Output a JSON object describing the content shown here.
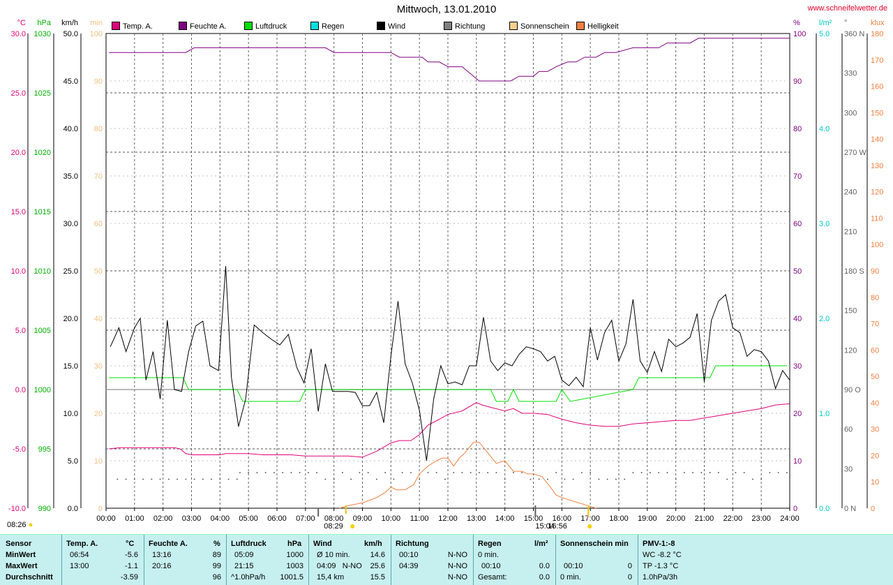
{
  "page": {
    "title": "Mittwoch, 13.01.2010",
    "url": "www.schneifelwetter.de"
  },
  "axes_units": {
    "temp": "°C",
    "pressure": "hPa",
    "wind": "km/h",
    "sun": "min",
    "humidity": "%",
    "rain": "l/m²",
    "direction": "°",
    "light": "klux"
  },
  "legend": [
    {
      "label": "Temp. A.",
      "color": "#e0007a"
    },
    {
      "label": "Feuchte A.",
      "color": "#800080"
    },
    {
      "label": "Luftdruck",
      "color": "#00e000"
    },
    {
      "label": "Regen",
      "color": "#00e0e0"
    },
    {
      "label": "Wind",
      "color": "#000000"
    },
    {
      "label": "Richtung",
      "color": "#808080"
    },
    {
      "label": "Sonnenschein",
      "color": "#f8d090"
    },
    {
      "label": "Helligkeit",
      "color": "#f08040"
    }
  ],
  "time_markers": {
    "sunrise_left": "08:26",
    "marker_a": "08:29",
    "marker_b": "15:04",
    "marker_c": "16:56"
  },
  "chart_data": {
    "type": "line",
    "title": "Mittwoch, 13.01.2010",
    "xlim": [
      0,
      24
    ],
    "x_ticks": [
      "00:00",
      "01:00",
      "02:00",
      "03:00",
      "04:00",
      "05:00",
      "06:00",
      "07:00",
      "08:00",
      "09:00",
      "10:00",
      "11:00",
      "12:00",
      "13:00",
      "14:00",
      "15:00",
      "16:00",
      "17:00",
      "18:00",
      "19:00",
      "20:00",
      "21:00",
      "22:00",
      "23:00",
      "24:00"
    ],
    "axes": {
      "temp": {
        "unit": "°C",
        "range": [
          -10,
          30
        ],
        "ticks": [
          "-10.0",
          "-5.0",
          "0.0",
          "5.0",
          "10.0",
          "15.0",
          "20.0",
          "25.0",
          "30.0"
        ]
      },
      "pressure": {
        "unit": "hPa",
        "range": [
          990,
          1030
        ],
        "ticks": [
          "990",
          "995",
          "1000",
          "1005",
          "1010",
          "1015",
          "1020",
          "1025",
          "1030"
        ]
      },
      "wind": {
        "unit": "km/h",
        "range": [
          0,
          50
        ],
        "ticks": [
          "0.0",
          "5.0",
          "10.0",
          "15.0",
          "20.0",
          "25.0",
          "30.0",
          "35.0",
          "40.0",
          "45.0",
          "50.0"
        ]
      },
      "sun": {
        "unit": "min",
        "range": [
          0,
          100
        ],
        "ticks": [
          "0",
          "10",
          "20",
          "30",
          "40",
          "50",
          "60",
          "70",
          "80",
          "90",
          "100"
        ]
      },
      "humidity": {
        "unit": "%",
        "range": [
          0,
          100
        ],
        "ticks": [
          "0",
          "10",
          "20",
          "30",
          "40",
          "50",
          "60",
          "70",
          "80",
          "90",
          "100"
        ]
      },
      "rain": {
        "unit": "l/m²",
        "range": [
          0,
          5
        ],
        "ticks": [
          "0.0",
          "1.0",
          "2.0",
          "3.0",
          "4.0",
          "5.0"
        ]
      },
      "direction": {
        "unit": "°",
        "range": [
          0,
          360
        ],
        "ticks": [
          "0",
          "30",
          "60",
          "90",
          "120",
          "150",
          "180",
          "210",
          "240",
          "270",
          "300",
          "330",
          "360"
        ],
        "tick_suffix": {
          "0": "N",
          "90": "O",
          "180": "S",
          "270": "W",
          "360": "N"
        }
      },
      "light": {
        "unit": "klux",
        "range": [
          0,
          180
        ],
        "ticks": [
          "0",
          "10",
          "20",
          "30",
          "40",
          "50",
          "60",
          "70",
          "80",
          "90",
          "100",
          "110",
          "120",
          "130",
          "140",
          "150",
          "160",
          "170",
          "180"
        ]
      }
    },
    "series": [
      {
        "name": "Feuchte A.",
        "axis": "humidity",
        "color": "#800080",
        "x": [
          0.1,
          2.8,
          3.1,
          7.7,
          8.0,
          10.0,
          10.3,
          11.1,
          11.3,
          11.7,
          12.0,
          12.5,
          12.9,
          13.1,
          13.5,
          14.2,
          14.5,
          15.0,
          15.2,
          15.5,
          15.8,
          16.2,
          16.5,
          16.8,
          17.2,
          17.5,
          17.9,
          18.5,
          19.4,
          19.7,
          20.5,
          20.8,
          24.0
        ],
        "y": [
          96,
          96,
          97,
          97,
          96,
          96,
          95,
          95,
          94,
          94,
          93,
          93,
          91,
          90,
          90,
          90,
          91,
          91,
          92,
          92,
          93,
          94,
          94,
          95,
          95,
          96,
          96,
          97,
          97,
          98,
          98,
          99,
          99
        ]
      },
      {
        "name": "Luftdruck",
        "axis": "pressure",
        "color": "#00e000",
        "x": [
          0.1,
          2.7,
          2.9,
          4.6,
          4.8,
          6.8,
          7.0,
          13.5,
          13.7,
          14.1,
          14.3,
          14.5,
          15.5,
          15.8,
          16.0,
          16.3,
          18.5,
          18.7,
          21.2,
          21.4,
          23.9
        ],
        "y": [
          1001,
          1001,
          1000,
          1000,
          999,
          999,
          1000,
          1000,
          999,
          999,
          1000,
          999,
          999,
          999,
          1000,
          999,
          1000,
          1001,
          1001,
          1002,
          1002
        ]
      },
      {
        "name": "Temp. A.",
        "axis": "temp",
        "color": "#e0007a",
        "x": [
          0.1,
          0.5,
          1.0,
          1.5,
          2.0,
          2.4,
          2.6,
          2.8,
          3.0,
          3.5,
          4.0,
          4.2,
          5.0,
          5.5,
          6.0,
          6.5,
          7.0,
          7.5,
          8.0,
          8.5,
          9.0,
          9.5,
          10.0,
          10.3,
          10.7,
          11.0,
          11.3,
          11.7,
          12.0,
          12.5,
          13.0,
          13.2,
          13.5,
          14.0,
          14.3,
          14.6,
          15.0,
          15.5,
          16.0,
          16.5,
          17.0,
          17.5,
          18.0,
          18.5,
          19.0,
          19.5,
          20.0,
          20.5,
          21.0,
          21.5,
          22.0,
          22.5,
          23.0,
          23.5,
          24.0
        ],
        "y": [
          -5.0,
          -4.9,
          -4.9,
          -4.9,
          -4.9,
          -4.9,
          -5.0,
          -5.4,
          -5.5,
          -5.5,
          -5.5,
          -5.4,
          -5.4,
          -5.5,
          -5.5,
          -5.5,
          -5.6,
          -5.6,
          -5.6,
          -5.6,
          -5.7,
          -5.2,
          -4.5,
          -4.3,
          -4.3,
          -3.8,
          -3.0,
          -2.5,
          -2.1,
          -1.8,
          -1.1,
          -1.3,
          -1.5,
          -1.8,
          -1.6,
          -2.0,
          -2.0,
          -2.1,
          -2.5,
          -2.8,
          -3.0,
          -3.1,
          -3.1,
          -2.9,
          -2.8,
          -2.7,
          -2.6,
          -2.6,
          -2.4,
          -2.2,
          -2.0,
          -1.8,
          -1.6,
          -1.3,
          -1.2
        ]
      },
      {
        "name": "Wind",
        "axis": "wind",
        "color": "#000000",
        "x": [
          0.15,
          0.45,
          0.7,
          1.0,
          1.2,
          1.4,
          1.65,
          1.9,
          2.15,
          2.4,
          2.65,
          2.9,
          3.15,
          3.4,
          3.65,
          3.95,
          4.2,
          4.4,
          4.65,
          4.9,
          5.2,
          5.5,
          5.8,
          6.1,
          6.4,
          6.7,
          6.95,
          7.2,
          7.45,
          7.7,
          7.95,
          8.2,
          8.5,
          8.75,
          9.0,
          9.25,
          9.5,
          9.75,
          10.0,
          10.25,
          10.5,
          10.75,
          11.0,
          11.25,
          11.5,
          11.75,
          12.0,
          12.25,
          12.5,
          12.75,
          13.0,
          13.25,
          13.5,
          13.75,
          14.0,
          14.25,
          14.5,
          14.75,
          15.0,
          15.25,
          15.5,
          15.75,
          16.0,
          16.25,
          16.5,
          16.75,
          17.0,
          17.25,
          17.5,
          17.75,
          18.0,
          18.25,
          18.5,
          18.75,
          19.0,
          19.25,
          19.5,
          19.75,
          20.0,
          20.25,
          20.5,
          20.75,
          21.0,
          21.25,
          21.5,
          21.75,
          22.0,
          22.25,
          22.5,
          22.75,
          23.0,
          23.25,
          23.5,
          23.75,
          24.0
        ],
        "y": [
          17.0,
          19.0,
          16.5,
          19.0,
          20.0,
          13.5,
          16.5,
          11.5,
          19.8,
          12.5,
          12.3,
          16.5,
          19.2,
          19.7,
          15.0,
          14.5,
          25.5,
          13.8,
          8.6,
          11.5,
          19.3,
          18.5,
          17.8,
          17.2,
          18.3,
          14.8,
          13.2,
          16.8,
          10.2,
          15.2,
          12.3,
          12.3,
          12.3,
          12.2,
          10.8,
          10.8,
          12.2,
          9.0,
          16.0,
          21.8,
          15.2,
          13.2,
          10.3,
          5.0,
          11.5,
          15.0,
          13.1,
          13.3,
          13.0,
          15.0,
          15.0,
          20.1,
          15.5,
          14.5,
          15.3,
          15.0,
          16.2,
          17.0,
          16.8,
          16.5,
          15.5,
          16.0,
          13.5,
          12.9,
          13.8,
          12.8,
          19.0,
          15.6,
          18.5,
          19.8,
          15.5,
          17.3,
          22.0,
          15.5,
          14.3,
          16.5,
          14.4,
          17.8,
          17.0,
          17.4,
          18.0,
          20.5,
          13.3,
          19.8,
          21.8,
          22.5,
          19.0,
          18.5,
          16.0,
          16.7,
          16.5,
          15.5,
          12.6,
          14.5,
          13.5
        ]
      },
      {
        "name": "Helligkeit",
        "axis": "light",
        "color": "#f08040",
        "x": [
          8.2,
          8.5,
          9.0,
          9.5,
          9.8,
          10.0,
          10.2,
          10.5,
          10.8,
          11.0,
          11.3,
          11.6,
          11.8,
          12.0,
          12.2,
          12.4,
          12.6,
          12.9,
          13.1,
          13.4,
          13.7,
          14.0,
          14.3,
          14.6,
          14.8,
          15.0,
          15.3,
          15.6,
          15.8,
          16.0,
          16.3,
          16.6,
          16.9,
          17.2
        ],
        "y": [
          0,
          1,
          2,
          4,
          6,
          8,
          7,
          7,
          9,
          13,
          16,
          18,
          19,
          19,
          16,
          19,
          21,
          25,
          25,
          21,
          17,
          18,
          14,
          14,
          13,
          13,
          12,
          8,
          5,
          4,
          3,
          2,
          1,
          0
        ]
      },
      {
        "name": "Richtung",
        "axis": "direction",
        "color": "#606060",
        "style": "dots",
        "x": [
          0.4,
          0.7,
          1.0,
          1.3,
          1.6,
          1.9,
          2.2,
          2.5,
          2.8,
          3.1,
          3.4,
          3.7,
          4.0,
          4.3,
          4.6,
          4.7,
          5.0,
          5.3,
          5.6,
          5.9,
          6.2,
          6.5,
          6.8,
          7.1,
          7.4,
          7.7,
          8.0,
          8.3,
          8.6,
          8.9,
          9.2,
          9.5,
          9.8,
          10.1,
          10.4,
          10.7,
          11.0,
          11.3,
          11.6,
          11.9,
          12.2,
          12.5,
          12.8,
          13.1,
          13.4,
          13.7,
          14.0,
          14.3,
          14.6,
          14.9,
          15.2,
          15.5,
          15.8,
          16.1,
          16.4,
          16.7,
          17.0,
          17.3,
          17.6,
          17.9,
          18.2,
          18.5,
          18.8,
          19.1,
          19.4,
          19.7,
          20.0,
          20.3,
          20.6,
          20.9,
          21.2,
          21.5,
          21.8,
          22.1,
          22.4,
          22.7,
          23.0,
          23.3,
          23.6,
          23.9
        ],
        "y": [
          22,
          22,
          22,
          22,
          22,
          22,
          22,
          22,
          22,
          22,
          22,
          22,
          22,
          22,
          22,
          27,
          27,
          27,
          27,
          27,
          27,
          27,
          27,
          27,
          27,
          22,
          22,
          27,
          22,
          27,
          27,
          22,
          27,
          22,
          27,
          27,
          22,
          27,
          27,
          22,
          27,
          27,
          27,
          27,
          27,
          27,
          22,
          27,
          27,
          22,
          22,
          22,
          27,
          22,
          22,
          27,
          27,
          22,
          22,
          22,
          22,
          27,
          27,
          27,
          27,
          27,
          22,
          27,
          27,
          27,
          27,
          27,
          22,
          27,
          27,
          22,
          22,
          27,
          27,
          27
        ]
      }
    ],
    "reference_lines": [
      {
        "axis": "temp",
        "value": 0,
        "color": "#a0a0a0"
      }
    ]
  },
  "summary_table": {
    "row_labels": [
      "Sensor",
      "MinWert",
      "MaxWert",
      "Durchschnitt"
    ],
    "columns": [
      {
        "header": "Temp. A.",
        "unit": "°C",
        "rows": [
          [
            "06:54",
            "-5.6"
          ],
          [
            "13:00",
            "-1.1"
          ],
          [
            "",
            "-3.59"
          ]
        ]
      },
      {
        "header": "Feuchte A.",
        "unit": "%",
        "rows": [
          [
            "13:16",
            "89"
          ],
          [
            "20:16",
            "99"
          ],
          [
            "",
            "96"
          ]
        ]
      },
      {
        "header": "Luftdruck",
        "unit": "hPa",
        "rows": [
          [
            "05:09",
            "1000"
          ],
          [
            "21:15",
            "1003"
          ],
          [
            "^1.0hPa/h",
            "1001.5"
          ]
        ]
      },
      {
        "header": "Wind",
        "unit": "km/h",
        "rows": [
          [
            "Ø 10 min.",
            "14.6"
          ],
          [
            "04:09   N-NO",
            "25.6"
          ],
          [
            "15,4 km",
            "15.5"
          ]
        ]
      },
      {
        "header": "Richtung",
        "unit": "",
        "rows": [
          [
            "00:10",
            "N-NO"
          ],
          [
            "04:39",
            "N-NO"
          ],
          [
            "",
            "N-NO"
          ]
        ]
      },
      {
        "header": "Regen",
        "unit": "l/m²",
        "rows": [
          [
            "0 min.",
            ""
          ],
          [
            "00:10",
            "0.0"
          ],
          [
            "Gesamt:",
            "0.0"
          ]
        ]
      },
      {
        "header": "Sonnenschein min",
        "unit": "",
        "rows": [
          [
            "",
            ""
          ],
          [
            "00:10",
            "0"
          ],
          [
            "0 min.",
            "0"
          ]
        ]
      },
      {
        "header": "PMV-1:-8",
        "unit": "",
        "rows": [
          [
            "WC -8.2 °C",
            ""
          ],
          [
            "TP -1.3 °C",
            ""
          ],
          [
            "1.0hPa/3h",
            ""
          ]
        ]
      }
    ]
  }
}
